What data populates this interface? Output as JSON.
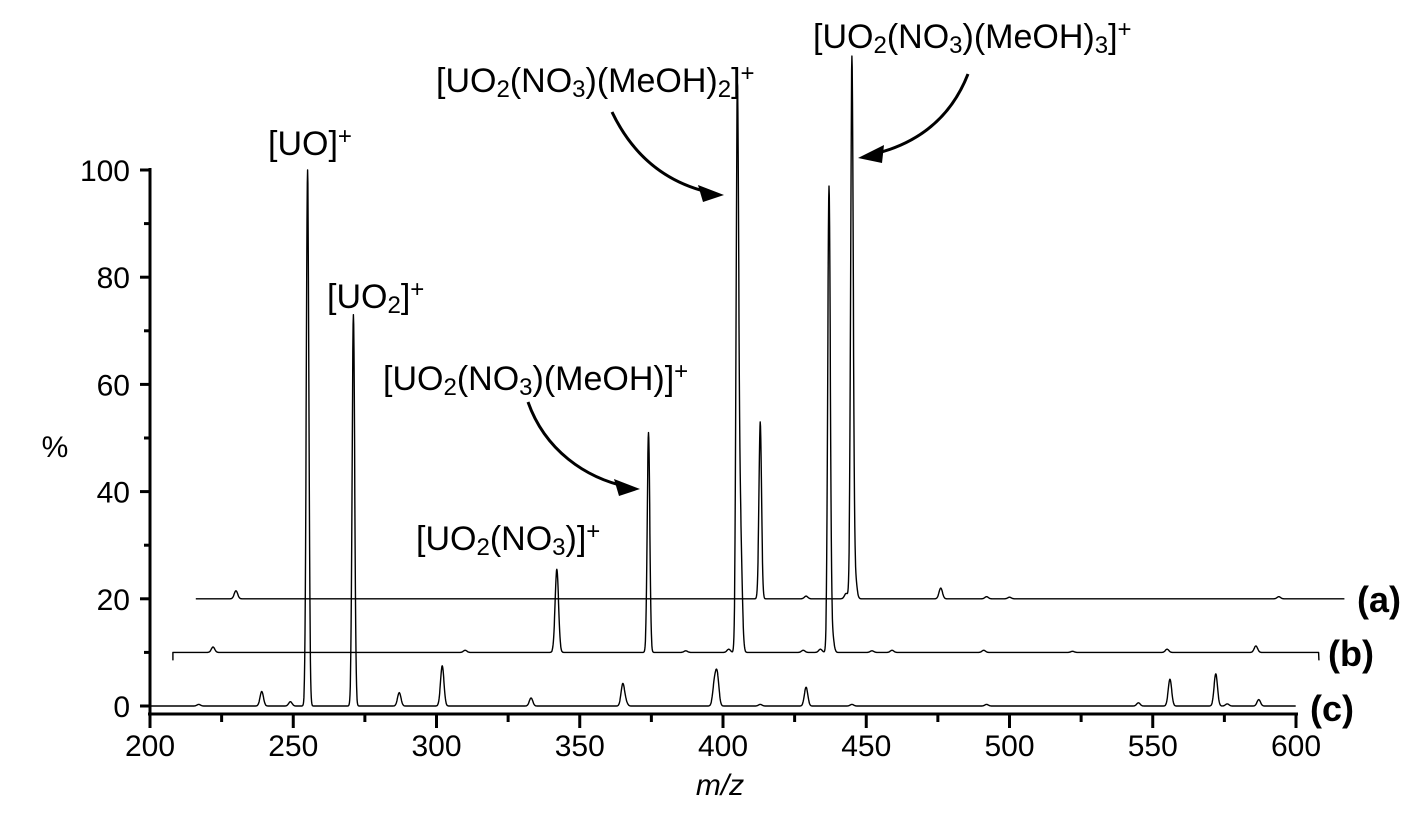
{
  "chart_data": {
    "type": "line",
    "title": "",
    "xlabel": "m/z",
    "ylabel": "%",
    "xlim": [
      200,
      600
    ],
    "ylim": [
      0,
      100
    ],
    "x_ticks": [
      200,
      250,
      300,
      350,
      400,
      450,
      500,
      550,
      600
    ],
    "y_ticks": [
      0,
      20,
      40,
      60,
      80,
      100
    ],
    "grid": false,
    "line_color": "#000000",
    "series": [
      {
        "name": "(a)",
        "offset": 20,
        "x_range": [
          216,
          617
        ],
        "peaks": [
          [
            230,
            1.5
          ],
          [
            413,
            33
          ],
          [
            429,
            0.5
          ],
          [
            443,
            1
          ],
          [
            445,
            100
          ],
          [
            446,
            5
          ],
          [
            476,
            2
          ],
          [
            492,
            0.4
          ],
          [
            500,
            0.3
          ],
          [
            594,
            0.4
          ]
        ]
      },
      {
        "name": "(b)",
        "offset": 10,
        "x_range": [
          208,
          608
        ],
        "peaks": [
          [
            222,
            1
          ],
          [
            310,
            0.4
          ],
          [
            342,
            15.5
          ],
          [
            374,
            41
          ],
          [
            387,
            0.3
          ],
          [
            402,
            0.6
          ],
          [
            405,
            100
          ],
          [
            406,
            25
          ],
          [
            428,
            0.4
          ],
          [
            434,
            0.6
          ],
          [
            437,
            86
          ],
          [
            438,
            4
          ],
          [
            452,
            0.3
          ],
          [
            459,
            0.4
          ],
          [
            491,
            0.4
          ],
          [
            522,
            0.2
          ],
          [
            555,
            0.6
          ],
          [
            586,
            1.2
          ]
        ]
      },
      {
        "name": "(c)",
        "offset": 0,
        "x_range": [
          200,
          600
        ],
        "peaks": [
          [
            217,
            0.3
          ],
          [
            239,
            2.7
          ],
          [
            249,
            0.8
          ],
          [
            255,
            100
          ],
          [
            271,
            73
          ],
          [
            287,
            2.5
          ],
          [
            302,
            7.5
          ],
          [
            333,
            1.5
          ],
          [
            365,
            4
          ],
          [
            366,
            0.8
          ],
          [
            397,
            4
          ],
          [
            398,
            5.5
          ],
          [
            413,
            0.3
          ],
          [
            429,
            3.5
          ],
          [
            445,
            0.3
          ],
          [
            492,
            0.3
          ],
          [
            545,
            0.6
          ],
          [
            556,
            5
          ],
          [
            572,
            6
          ],
          [
            576,
            0.4
          ],
          [
            587,
            1.2
          ]
        ]
      }
    ],
    "annotations": [
      {
        "id": "uo",
        "segments": [
          [
            "[UO]",
            ""
          ],
          [
            "+",
            "sup"
          ]
        ]
      },
      {
        "id": "uo2",
        "segments": [
          [
            "[UO",
            ""
          ],
          [
            "2",
            "sub"
          ],
          [
            "]",
            ""
          ],
          [
            "+",
            "sup"
          ]
        ]
      },
      {
        "id": "no3",
        "segments": [
          [
            "[UO",
            ""
          ],
          [
            "2",
            "sub"
          ],
          [
            "(NO",
            ""
          ],
          [
            "3",
            "sub"
          ],
          [
            ")]",
            ""
          ],
          [
            "+",
            "sup"
          ]
        ]
      },
      {
        "id": "meoh1",
        "segments": [
          [
            "[UO",
            ""
          ],
          [
            "2",
            "sub"
          ],
          [
            "(NO",
            ""
          ],
          [
            "3",
            "sub"
          ],
          [
            ")(MeOH)]",
            ""
          ],
          [
            "+",
            "sup"
          ]
        ]
      },
      {
        "id": "meoh2",
        "segments": [
          [
            "[UO",
            ""
          ],
          [
            "2",
            "sub"
          ],
          [
            "(NO",
            ""
          ],
          [
            "3",
            "sub"
          ],
          [
            ")(MeOH)",
            ""
          ],
          [
            "2",
            "sub"
          ],
          [
            "]",
            ""
          ],
          [
            "+",
            "sup"
          ]
        ]
      },
      {
        "id": "meoh3",
        "segments": [
          [
            "[UO",
            ""
          ],
          [
            "2",
            "sub"
          ],
          [
            "(NO",
            ""
          ],
          [
            "3",
            "sub"
          ],
          [
            ")(MeOH)",
            ""
          ],
          [
            "3",
            "sub"
          ],
          [
            "]",
            ""
          ],
          [
            "+",
            "sup"
          ]
        ]
      }
    ]
  }
}
